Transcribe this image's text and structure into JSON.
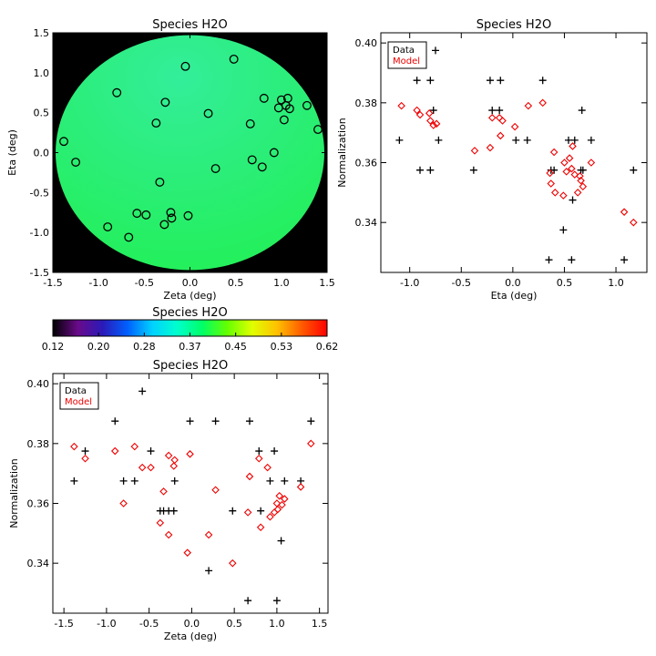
{
  "chart_data": [
    {
      "id": "map",
      "type": "heatmap",
      "title": "Species H2O",
      "xlabel": "Zeta (deg)",
      "ylabel": "Eta (deg)",
      "xlim": [
        -1.5,
        1.5
      ],
      "ylim": [
        -1.5,
        1.5
      ],
      "xticks": [
        -1.5,
        -1.0,
        -0.5,
        0.0,
        0.5,
        1.0,
        1.5
      ],
      "xtick_labels": [
        "-1.5",
        "-1.0",
        "-0.5",
        "0.0",
        "0.5",
        "1.0",
        "1.5"
      ],
      "yticks": [
        -1.5,
        -1.0,
        -0.5,
        0.0,
        0.5,
        1.0,
        1.5
      ],
      "ytick_labels": [
        "-1.5",
        "-1.0",
        "-0.5",
        "0.0",
        "0.5",
        "1.0",
        "1.5"
      ],
      "disk_radius": 1.47,
      "background_color": "#000000",
      "field_colors": [
        "#33ee9a",
        "#22ef55"
      ],
      "marker": "open circle",
      "points": [
        [
          -1.38,
          0.14
        ],
        [
          -1.25,
          -0.12
        ],
        [
          -0.8,
          0.75
        ],
        [
          -0.9,
          -0.93
        ],
        [
          -0.67,
          -1.06
        ],
        [
          -0.58,
          -0.76
        ],
        [
          -0.48,
          -0.78
        ],
        [
          -0.37,
          0.37
        ],
        [
          -0.33,
          -0.37
        ],
        [
          -0.27,
          0.63
        ],
        [
          -0.28,
          -0.9
        ],
        [
          -0.21,
          -0.75
        ],
        [
          -0.2,
          -0.82
        ],
        [
          -0.02,
          -0.79
        ],
        [
          -0.05,
          1.08
        ],
        [
          0.2,
          0.49
        ],
        [
          0.28,
          -0.2
        ],
        [
          0.48,
          1.17
        ],
        [
          0.66,
          0.36
        ],
        [
          0.68,
          -0.09
        ],
        [
          0.79,
          -0.18
        ],
        [
          0.81,
          0.68
        ],
        [
          0.92,
          0.0
        ],
        [
          0.97,
          0.56
        ],
        [
          1.0,
          0.66
        ],
        [
          1.03,
          0.41
        ],
        [
          1.05,
          0.59
        ],
        [
          1.07,
          0.68
        ],
        [
          1.09,
          0.55
        ],
        [
          1.28,
          0.59
        ],
        [
          1.4,
          0.29
        ]
      ]
    },
    {
      "id": "colorbar",
      "type": "heatmap",
      "title": "Species H2O",
      "range": [
        0.12,
        0.62
      ],
      "tick_labels": [
        "0.12",
        "0.20",
        "0.28",
        "0.37",
        "0.45",
        "0.53",
        "0.62"
      ],
      "colors": [
        "#000000",
        "#6a0a8a",
        "#2a1ab8",
        "#0060ff",
        "#00d2ff",
        "#00ffcc",
        "#00ff66",
        "#66ff00",
        "#e0ff00",
        "#ffc000",
        "#ff5a00",
        "#ff0000"
      ]
    },
    {
      "id": "eta_plot",
      "type": "scatter",
      "title": "Species H2O",
      "xlabel": "Eta (deg)",
      "ylabel": "Normalization",
      "xlim": [
        -1.28,
        1.3
      ],
      "ylim": [
        0.3233,
        0.4034
      ],
      "xticks": [
        -1.0,
        -0.5,
        0.0,
        0.5,
        1.0
      ],
      "xtick_labels": [
        "-1.0",
        "-0.5",
        "0.0",
        "0.5",
        "1.0"
      ],
      "yticks": [
        0.34,
        0.36,
        0.38,
        0.4
      ],
      "ytick_labels": [
        "0.34",
        "0.36",
        "0.38",
        "0.40"
      ],
      "legend": {
        "position": "top-left",
        "entries": [
          {
            "label": "Data",
            "color": "#000000"
          },
          {
            "label": "Model",
            "color": "#ee0000"
          }
        ]
      },
      "series": [
        {
          "name": "Data",
          "marker": "plus",
          "color": "#000000",
          "points": [
            [
              -1.1,
              0.3675
            ],
            [
              -0.93,
              0.3875
            ],
            [
              -0.9,
              0.3575
            ],
            [
              -0.8,
              0.3875
            ],
            [
              -0.8,
              0.3575
            ],
            [
              -0.77,
              0.3775
            ],
            [
              -0.75,
              0.3975
            ],
            [
              -0.72,
              0.3675
            ],
            [
              -0.38,
              0.3575
            ],
            [
              -0.22,
              0.3875
            ],
            [
              -0.2,
              0.3775
            ],
            [
              -0.13,
              0.3775
            ],
            [
              -0.12,
              0.3875
            ],
            [
              0.03,
              0.3675
            ],
            [
              0.14,
              0.3675
            ],
            [
              0.29,
              0.3875
            ],
            [
              0.35,
              0.3275
            ],
            [
              0.37,
              0.3575
            ],
            [
              0.4,
              0.3575
            ],
            [
              0.49,
              0.3375
            ],
            [
              0.54,
              0.3675
            ],
            [
              0.57,
              0.3275
            ],
            [
              0.58,
              0.3475
            ],
            [
              0.6,
              0.3675
            ],
            [
              0.66,
              0.3575
            ],
            [
              0.67,
              0.3775
            ],
            [
              0.68,
              0.3575
            ],
            [
              0.76,
              0.3675
            ],
            [
              1.08,
              0.3275
            ],
            [
              1.17,
              0.3575
            ]
          ]
        },
        {
          "name": "Model",
          "marker": "open diamond",
          "color": "#ee0000",
          "points": [
            [
              -1.08,
              0.379
            ],
            [
              -0.93,
              0.3775
            ],
            [
              -0.9,
              0.376
            ],
            [
              -0.81,
              0.3765
            ],
            [
              -0.8,
              0.374
            ],
            [
              -0.77,
              0.3725
            ],
            [
              -0.74,
              0.373
            ],
            [
              -0.37,
              0.364
            ],
            [
              -0.22,
              0.365
            ],
            [
              -0.2,
              0.375
            ],
            [
              -0.13,
              0.375
            ],
            [
              -0.12,
              0.369
            ],
            [
              -0.1,
              0.374
            ],
            [
              0.02,
              0.372
            ],
            [
              0.15,
              0.379
            ],
            [
              0.29,
              0.38
            ],
            [
              0.36,
              0.3565
            ],
            [
              0.37,
              0.353
            ],
            [
              0.4,
              0.3635
            ],
            [
              0.41,
              0.35
            ],
            [
              0.49,
              0.349
            ],
            [
              0.5,
              0.36
            ],
            [
              0.52,
              0.357
            ],
            [
              0.55,
              0.3615
            ],
            [
              0.57,
              0.358
            ],
            [
              0.58,
              0.3655
            ],
            [
              0.6,
              0.356
            ],
            [
              0.63,
              0.35
            ],
            [
              0.65,
              0.3555
            ],
            [
              0.66,
              0.354
            ],
            [
              0.68,
              0.352
            ],
            [
              0.76,
              0.36
            ],
            [
              1.08,
              0.3435
            ],
            [
              1.17,
              0.34
            ]
          ]
        }
      ]
    },
    {
      "id": "zeta_plot",
      "type": "scatter",
      "title": "Species H2O",
      "xlabel": "Zeta (deg)",
      "ylabel": "Normalization",
      "xlim": [
        -1.63,
        1.6
      ],
      "ylim": [
        0.3233,
        0.4034
      ],
      "xticks": [
        -1.5,
        -1.0,
        -0.5,
        0.0,
        0.5,
        1.0,
        1.5
      ],
      "xtick_labels": [
        "-1.5",
        "-1.0",
        "-0.5",
        "0.0",
        "0.5",
        "1.0",
        "1.5"
      ],
      "yticks": [
        0.34,
        0.36,
        0.38,
        0.4
      ],
      "ytick_labels": [
        "0.34",
        "0.36",
        "0.38",
        "0.40"
      ],
      "legend": {
        "position": "top-left",
        "entries": [
          {
            "label": "Data",
            "color": "#000000"
          },
          {
            "label": "Model",
            "color": "#ee0000"
          }
        ]
      },
      "series": [
        {
          "name": "Data",
          "marker": "plus",
          "color": "#000000",
          "points": [
            [
              -1.38,
              0.3675
            ],
            [
              -1.25,
              0.3775
            ],
            [
              -0.9,
              0.3875
            ],
            [
              -0.8,
              0.3675
            ],
            [
              -0.67,
              0.3675
            ],
            [
              -0.58,
              0.3975
            ],
            [
              -0.48,
              0.3775
            ],
            [
              -0.37,
              0.3575
            ],
            [
              -0.33,
              0.3575
            ],
            [
              -0.27,
              0.3575
            ],
            [
              -0.21,
              0.3575
            ],
            [
              -0.2,
              0.3675
            ],
            [
              -0.02,
              0.3875
            ],
            [
              0.2,
              0.3375
            ],
            [
              0.28,
              0.3875
            ],
            [
              0.48,
              0.3575
            ],
            [
              0.66,
              0.3275
            ],
            [
              0.68,
              0.3875
            ],
            [
              0.79,
              0.3775
            ],
            [
              0.81,
              0.3575
            ],
            [
              0.92,
              0.3675
            ],
            [
              0.97,
              0.3775
            ],
            [
              1.0,
              0.3275
            ],
            [
              1.05,
              0.3475
            ],
            [
              1.09,
              0.3675
            ],
            [
              1.28,
              0.3675
            ],
            [
              1.4,
              0.3875
            ]
          ]
        },
        {
          "name": "Model",
          "marker": "open diamond",
          "color": "#ee0000",
          "points": [
            [
              -1.38,
              0.379
            ],
            [
              -1.25,
              0.375
            ],
            [
              -0.9,
              0.3775
            ],
            [
              -0.8,
              0.36
            ],
            [
              -0.67,
              0.379
            ],
            [
              -0.58,
              0.372
            ],
            [
              -0.48,
              0.372
            ],
            [
              -0.37,
              0.3535
            ],
            [
              -0.33,
              0.364
            ],
            [
              -0.27,
              0.3495
            ],
            [
              -0.27,
              0.376
            ],
            [
              -0.21,
              0.3725
            ],
            [
              -0.2,
              0.3745
            ],
            [
              -0.05,
              0.3435
            ],
            [
              -0.02,
              0.3765
            ],
            [
              0.2,
              0.3495
            ],
            [
              0.28,
              0.3645
            ],
            [
              0.48,
              0.34
            ],
            [
              0.66,
              0.357
            ],
            [
              0.68,
              0.369
            ],
            [
              0.79,
              0.375
            ],
            [
              0.81,
              0.352
            ],
            [
              0.89,
              0.372
            ],
            [
              0.92,
              0.3555
            ],
            [
              0.97,
              0.357
            ],
            [
              1.0,
              0.36
            ],
            [
              1.01,
              0.358
            ],
            [
              1.03,
              0.3625
            ],
            [
              1.06,
              0.3595
            ],
            [
              1.09,
              0.3615
            ],
            [
              1.28,
              0.3655
            ],
            [
              1.4,
              0.38
            ]
          ]
        }
      ]
    }
  ]
}
